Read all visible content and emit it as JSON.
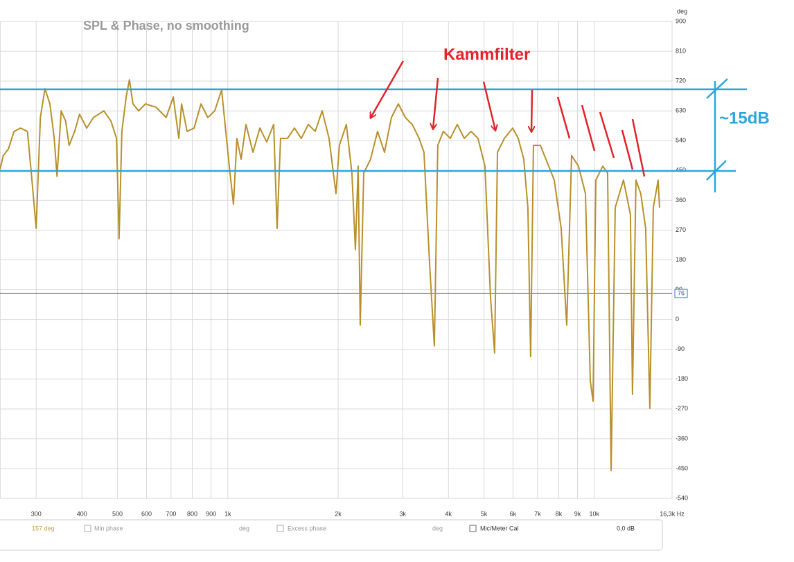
{
  "chart_data": {
    "type": "line",
    "title": "SPL & Phase, no smoothing",
    "y_label": "deg",
    "log_x": true,
    "grid": true,
    "xlim": [
      239,
      16300
    ],
    "ylim": [
      -540,
      900
    ],
    "xticks": [
      300,
      400,
      500,
      600,
      700,
      800,
      900,
      {
        "value": 1000,
        "label": "1k"
      },
      {
        "value": 2000,
        "label": "2k"
      },
      {
        "value": 3000,
        "label": "3k"
      },
      {
        "value": 4000,
        "label": "4k"
      },
      {
        "value": 5000,
        "label": "5k"
      },
      {
        "value": 6000,
        "label": "6k"
      },
      {
        "value": 7000,
        "label": "7k"
      },
      {
        "value": 8000,
        "label": "8k"
      },
      {
        "value": 9000,
        "label": "9k"
      },
      {
        "value": 10000,
        "label": "10k"
      },
      {
        "value": 16300,
        "label": "16,3k Hz"
      }
    ],
    "yticks": [
      900,
      810,
      720,
      630,
      540,
      450,
      360,
      270,
      180,
      90,
      0,
      -90,
      -180,
      -270,
      -360,
      -450,
      -540
    ],
    "x": [
      239,
      244,
      252,
      261,
      272,
      284,
      291,
      300,
      308,
      317,
      327,
      336,
      342,
      351,
      361,
      369,
      382,
      394,
      412,
      430,
      459,
      480,
      497,
      505,
      514,
      528,
      539,
      551,
      571,
      596,
      637,
      679,
      710,
      735,
      748,
      774,
      809,
      845,
      882,
      921,
      962,
      983,
      1014,
      1036,
      1059,
      1087,
      1121,
      1171,
      1223,
      1277,
      1334,
      1363,
      1393,
      1455,
      1520,
      1587,
      1658,
      1732,
      1809,
      1889,
      1973,
      2016,
      2106,
      2181,
      2229,
      2268,
      2298,
      2349,
      2452,
      2562,
      2676,
      2795,
      2920,
      3050,
      3186,
      3327,
      3430,
      3552,
      3661,
      3741,
      3874,
      4046,
      4228,
      4416,
      4610,
      4816,
      5031,
      5210,
      5346,
      5442,
      5683,
      5989,
      6200,
      6420,
      6589,
      6704,
      6823,
      7127,
      7442,
      7775,
      8121,
      8410,
      8671,
      9056,
      9460,
      9751,
      9923,
      10098,
      10547,
      10872,
      11114,
      11405,
      12012,
      12548,
      12712,
      12992,
      13394,
      13809,
      14177,
      14488,
      14935,
      15067
    ],
    "series": [
      {
        "color": "#b8902a",
        "values": [
          453,
          495,
          515,
          568,
          578,
          568,
          442,
          275,
          610,
          697,
          651,
          547,
          432,
          630,
          599,
          526,
          568,
          620,
          578,
          610,
          630,
          599,
          547,
          244,
          568,
          672,
          724,
          651,
          630,
          651,
          641,
          610,
          672,
          547,
          651,
          568,
          578,
          651,
          610,
          630,
          693,
          589,
          442,
          348,
          547,
          484,
          589,
          505,
          578,
          536,
          589,
          275,
          547,
          547,
          578,
          547,
          589,
          568,
          630,
          547,
          380,
          526,
          589,
          442,
          212,
          463,
          -17,
          442,
          484,
          568,
          505,
          610,
          651,
          610,
          589,
          547,
          505,
          171,
          -80,
          526,
          568,
          547,
          589,
          547,
          568,
          547,
          463,
          66,
          -101,
          505,
          547,
          578,
          547,
          484,
          338,
          -112,
          526,
          526,
          474,
          421,
          275,
          -17,
          495,
          463,
          380,
          -185,
          -247,
          421,
          463,
          442,
          -456,
          338,
          421,
          317,
          -226,
          421,
          380,
          275,
          -268,
          338,
          421,
          338
        ]
      }
    ],
    "cursor_label": "76",
    "annotations": [
      "Kammfilter",
      "~15dB"
    ]
  },
  "controls": [
    "157 deg",
    "Min phase",
    "deg",
    "Excess phase",
    "deg",
    "Mic/Meter Cal",
    "0,0 dB"
  ]
}
